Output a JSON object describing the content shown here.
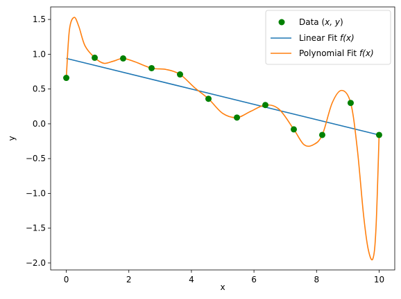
{
  "chart_data": {
    "type": "scatter",
    "xlabel": "x",
    "ylabel": "y",
    "xlim": [
      -0.5,
      10.5
    ],
    "ylim": [
      -2.1,
      1.68
    ],
    "x_ticks": [
      0,
      2,
      4,
      6,
      8,
      10
    ],
    "y_ticks": [
      -2.0,
      -1.5,
      -1.0,
      -0.5,
      0.0,
      0.5,
      1.0,
      1.5
    ],
    "x_tick_labels": [
      "0",
      "2",
      "4",
      "6",
      "8",
      "10"
    ],
    "y_tick_labels": [
      "−2.0",
      "−1.5",
      "−1.0",
      "−0.5",
      "0.0",
      "0.5",
      "1.0",
      "1.5"
    ],
    "grid": false,
    "legend_position": "top-right",
    "series": [
      {
        "name": "Data (x, y)",
        "kind": "scatter",
        "color": "#008000",
        "x": [
          0.0,
          0.909,
          1.818,
          2.727,
          3.636,
          4.545,
          5.455,
          6.364,
          7.273,
          8.182,
          9.091,
          10.0
        ],
        "y": [
          0.66,
          0.95,
          0.94,
          0.8,
          0.71,
          0.36,
          0.09,
          0.27,
          -0.08,
          -0.16,
          0.3,
          -0.16
        ]
      },
      {
        "name": "Linear Fit f(x)",
        "kind": "line",
        "color": "#1f77b4",
        "x": [
          0.0,
          10.0
        ],
        "y": [
          0.94,
          -0.16
        ]
      },
      {
        "name": "Polynomial Fit f(x)",
        "kind": "line",
        "color": "#ff7f0e",
        "x": [
          0.0,
          0.1,
          0.25,
          0.4,
          0.6,
          0.909,
          1.2,
          1.5,
          1.818,
          2.2,
          2.727,
          3.2,
          3.636,
          4.1,
          4.545,
          5.0,
          5.455,
          5.9,
          6.364,
          6.8,
          7.273,
          7.6,
          7.9,
          8.182,
          8.5,
          8.8,
          9.091,
          9.3,
          9.5,
          9.65,
          9.8,
          9.9,
          10.0
        ],
        "y": [
          0.66,
          1.35,
          1.53,
          1.4,
          1.12,
          0.95,
          0.87,
          0.9,
          0.94,
          0.89,
          0.8,
          0.78,
          0.71,
          0.52,
          0.36,
          0.15,
          0.09,
          0.18,
          0.27,
          0.21,
          -0.08,
          -0.3,
          -0.3,
          -0.16,
          0.3,
          0.48,
          0.3,
          -0.35,
          -1.3,
          -1.8,
          -1.94,
          -1.5,
          -0.16
        ]
      }
    ]
  },
  "legend": {
    "items": [
      {
        "label": "Data (",
        "math": "x, y",
        "suffix": ")"
      },
      {
        "label": "Linear Fit ",
        "math": "f(x)",
        "suffix": ""
      },
      {
        "label": "Polynomial Fit ",
        "math": "f(x)",
        "suffix": ""
      }
    ]
  }
}
